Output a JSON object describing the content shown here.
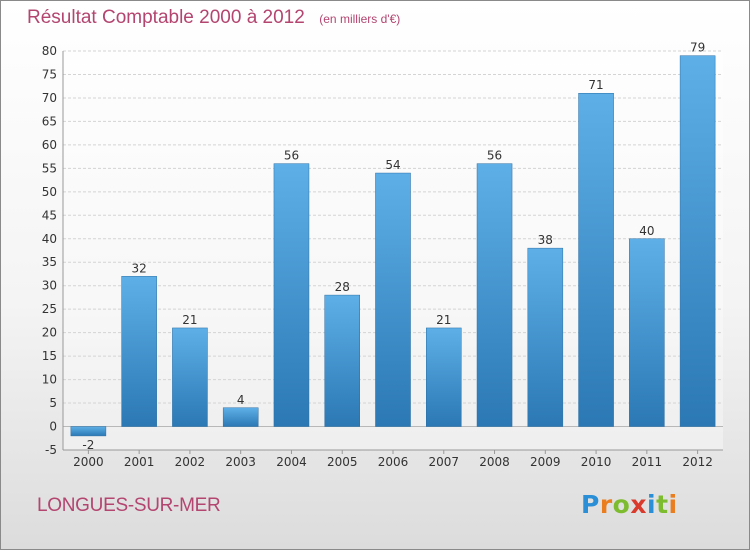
{
  "header": {
    "title": "Résultat Comptable 2000 à 2012",
    "subtitle": "(en milliers d'€)"
  },
  "footer": {
    "commune": "LONGUES-SUR-MER",
    "logo_letters": [
      "P",
      "r",
      "o",
      "x",
      "i",
      "t",
      "i"
    ],
    "logo_colors": [
      "#2a8fd6",
      "#ea7d1e",
      "#7dbb2f",
      "#d93a2b",
      "#2a8fd6",
      "#7dbb2f",
      "#ea7d1e"
    ]
  },
  "colors": {
    "bar_top": "#5eafe8",
    "bar_bottom": "#2b78b4",
    "grid": "#d4d4d4",
    "title": "#b3456f"
  },
  "chart_data": {
    "type": "bar",
    "title": "Résultat Comptable 2000 à 2012",
    "subtitle": "(en milliers d'€)",
    "xlabel": "",
    "ylabel": "",
    "categories": [
      "2000",
      "2001",
      "2002",
      "2003",
      "2004",
      "2005",
      "2006",
      "2007",
      "2008",
      "2009",
      "2010",
      "2011",
      "2012"
    ],
    "values": [
      -2,
      32,
      21,
      4,
      56,
      28,
      54,
      21,
      56,
      38,
      71,
      40,
      79
    ],
    "ylim": [
      -5,
      80
    ],
    "yticks": [
      -5,
      0,
      5,
      10,
      15,
      20,
      25,
      30,
      35,
      40,
      45,
      50,
      55,
      60,
      65,
      70,
      75,
      80
    ],
    "grid": true,
    "data_labels": true
  }
}
